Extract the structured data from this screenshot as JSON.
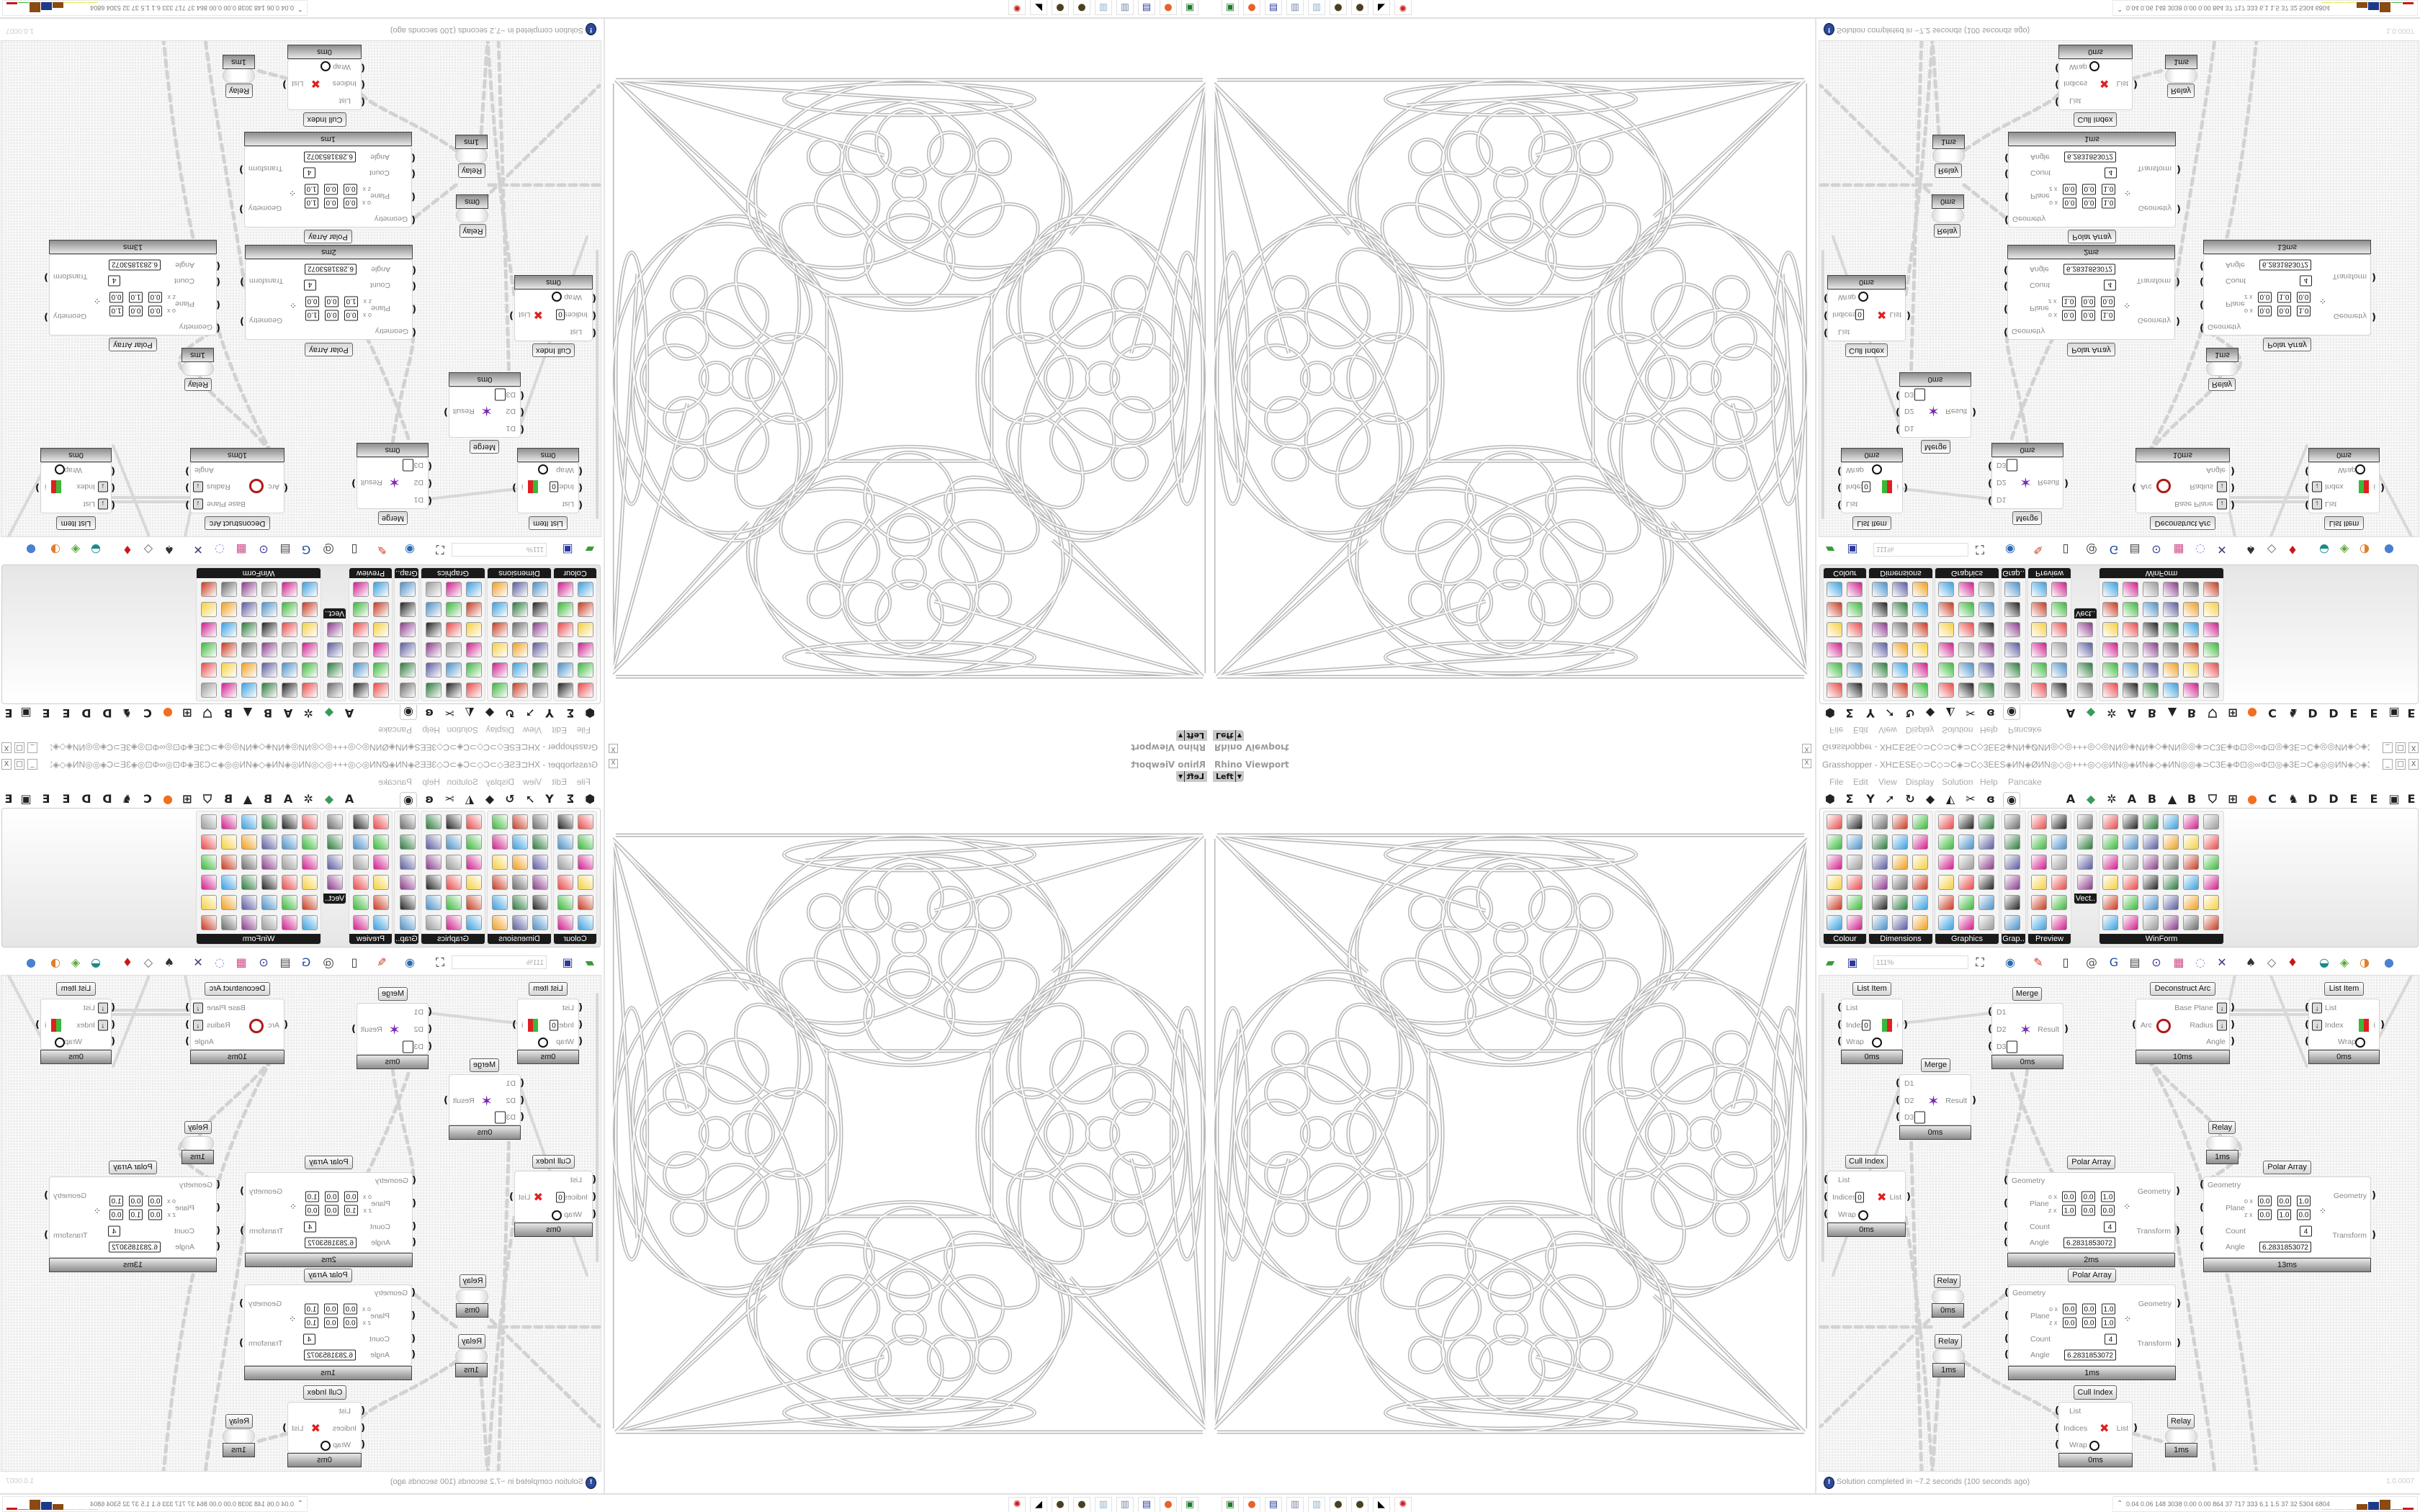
{
  "rhino_viewport": {
    "title": "Rhino Viewport",
    "view": "Left",
    "close": "X"
  },
  "grasshopper": {
    "title": "Grasshopper - XH⊏ESE◇⊃C◇⊃C◈⊃C◇3EES◈ИN◈ØИN◎◇◎+++◎◇◎ИN◎◈ИN◈◇◈ИN◎◎◈⊃C3E◈Φ⊡◎∞Φ⊡◎◈3E⊃C◈◎◎ИN◈◇◈3E◈3E⊞◈+ES◈⊞3E◈3E◈◇◈◈⊃C3E◈◈⊃C",
    "window_buttons": [
      "_",
      "□",
      "X"
    ],
    "menu": [
      "File",
      "Edit",
      "View",
      "Display",
      "Solution",
      "Help",
      "Pancake"
    ],
    "tabs": [
      {
        "icon": "params-icon",
        "glyph": "⬢"
      },
      {
        "icon": "maths-icon",
        "glyph": "Σ"
      },
      {
        "icon": "sets-icon",
        "glyph": "Y"
      },
      {
        "icon": "vector-icon",
        "glyph": "➚"
      },
      {
        "icon": "curve-icon",
        "glyph": "↻"
      },
      {
        "icon": "surface-icon",
        "glyph": "◆"
      },
      {
        "icon": "mesh-icon",
        "glyph": "◭"
      },
      {
        "icon": "intersect-icon",
        "glyph": "✂"
      },
      {
        "icon": "transform-icon",
        "glyph": "ɞ"
      },
      {
        "icon": "display-icon",
        "glyph": "◉",
        "selected": true
      },
      {
        "icon": "tab-a",
        "glyph": "A"
      },
      {
        "icon": "leaf-icon",
        "glyph": "◆"
      },
      {
        "icon": "gear-icon",
        "glyph": "✲"
      },
      {
        "icon": "tab-a",
        "glyph": "A"
      },
      {
        "icon": "tab-b",
        "glyph": "B"
      },
      {
        "icon": "mountain-icon",
        "glyph": "▲"
      },
      {
        "icon": "tab-b",
        "glyph": "B"
      },
      {
        "icon": "shield-icon",
        "glyph": "⛉"
      },
      {
        "icon": "grid-icon",
        "glyph": "⊞"
      },
      {
        "icon": "orange-ball-icon",
        "glyph": "●"
      },
      {
        "icon": "tab-c",
        "glyph": "C"
      },
      {
        "icon": "rooster-icon",
        "glyph": "♞"
      },
      {
        "icon": "tab-d",
        "glyph": "D"
      },
      {
        "icon": "tab-d",
        "glyph": "D"
      },
      {
        "icon": "tab-e",
        "glyph": "E"
      },
      {
        "icon": "tab-e",
        "glyph": "E"
      },
      {
        "icon": "frame-icon",
        "glyph": "▣"
      },
      {
        "icon": "tab-e",
        "glyph": "E"
      }
    ],
    "ribbon_groups": [
      "Colour",
      "Dimensions",
      "Graphics",
      "Grap..",
      "Preview",
      "Vect..",
      "WinForm"
    ],
    "zoom": "111%",
    "toolbar_icons": [
      "new-file-icon",
      "save-icon",
      "zoom-extents-icon",
      "preview-eye-icon",
      "sketch-icon",
      "bulb-icon",
      "email-icon",
      "gha-icon",
      "document-icon",
      "search-icon",
      "package-icon",
      "lightbulb-icon",
      "wires-icon",
      "rhino-icon",
      "mesh-icon",
      "red-gem-icon",
      "teal-icon",
      "green-icon",
      "sphere-icon",
      "blue-sphere-icon"
    ],
    "accent": "#1a1a1a",
    "nodes": [
      {
        "title": "List Item",
        "inputs": [
          "List",
          "Index",
          "Wrap"
        ],
        "outputs": [
          "i"
        ],
        "value": "0",
        "time": "0ms"
      },
      {
        "title": "Merge",
        "inputs": [
          "D1",
          "D2",
          "D3"
        ],
        "outputs": [
          "Result"
        ],
        "time": "0ms"
      },
      {
        "title": "Deconstruct Arc",
        "inputs": [
          "Arc"
        ],
        "outputs": [
          "Base Plane",
          "Radius",
          "Angle"
        ],
        "time": "10ms"
      },
      {
        "title": "List Item",
        "inputs": [
          "List",
          "Index",
          "Wrap"
        ],
        "outputs": [
          "i"
        ],
        "time": "0ms"
      },
      {
        "title": "Merge",
        "inputs": [
          "D1",
          "D2",
          "D3"
        ],
        "outputs": [
          "Result"
        ],
        "time": "0ms"
      },
      {
        "title": "Relay",
        "time": "1ms"
      },
      {
        "title": "Cull Index",
        "inputs": [
          "List",
          "Indices",
          "Wrap"
        ],
        "outputs": [
          "List"
        ],
        "value": "0",
        "time": "0ms"
      },
      {
        "title": "Polar Array",
        "inputs": [
          "Geometry",
          "Plane",
          "Count",
          "Angle"
        ],
        "outputs": [
          "Geometry",
          "Transform"
        ],
        "plane_o": [
          "0.0",
          "0.0",
          "1.0"
        ],
        "plane_z": [
          "1.0",
          "0.0",
          "0.0"
        ],
        "count": "4",
        "angle": "6.2831853072",
        "time": "2ms"
      },
      {
        "title": "Polar Array",
        "inputs": [
          "Geometry",
          "Plane",
          "Count",
          "Angle"
        ],
        "outputs": [
          "Geometry",
          "Transform"
        ],
        "plane_o": [
          "0.0",
          "0.0",
          "1.0"
        ],
        "plane_z": [
          "0.0",
          "1.0",
          "0.0"
        ],
        "count": "4",
        "angle": "6.2831853072",
        "time": "13ms"
      },
      {
        "title": "Polar Array",
        "inputs": [
          "Geometry",
          "Plane",
          "Count",
          "Angle"
        ],
        "outputs": [
          "Geometry",
          "Transform"
        ],
        "plane_o": [
          "0.0",
          "0.0",
          "1.0"
        ],
        "plane_z": [
          "0.0",
          "0.0",
          "1.0"
        ],
        "count": "4",
        "angle": "6.2831853072",
        "time": "1ms"
      },
      {
        "title": "Relay",
        "time": "0ms"
      },
      {
        "title": "Relay",
        "time": "1ms"
      },
      {
        "title": "Cull Index",
        "inputs": [
          "List",
          "Indices",
          "Wrap"
        ],
        "outputs": [
          "List"
        ],
        "time": "0ms"
      },
      {
        "title": "Relay",
        "time": "1ms"
      }
    ],
    "status": "Solution completed in ~7.2 seconds (100 seconds ago)",
    "version": "1.0.0007"
  },
  "taskbar": {
    "icons": [
      {
        "name": "terminal-icon",
        "glyph": "▣",
        "color": "#1c7a2a"
      },
      {
        "name": "firefox-icon",
        "glyph": "●",
        "color": "#e8622a"
      },
      {
        "name": "floppy-64-icon",
        "glyph": "▤",
        "color": "#283c9a"
      },
      {
        "name": "notepad-icon",
        "glyph": "▥",
        "color": "#7a8aa8"
      },
      {
        "name": "notepad-icon",
        "glyph": "▥",
        "color": "#8fb0c8"
      },
      {
        "name": "globe-icon",
        "glyph": "●",
        "color": "#4a4020"
      },
      {
        "name": "globe-icon",
        "glyph": "●",
        "color": "#4a4020"
      },
      {
        "name": "wolf-icon",
        "glyph": "◣",
        "color": "#000000"
      },
      {
        "name": "red-app-icon",
        "glyph": "✺",
        "color": "#d01818"
      }
    ],
    "stats": "0.04 0.06 148 3038 0.00 0.00 864 37 717 333 6.1 1.5 37 32 5304 6804",
    "stats_bars": [
      {
        "color": "#e6e64a",
        "level": 0.05
      },
      {
        "color": "#e6e64a",
        "level": 0.05
      },
      {
        "color": "#e6e64a",
        "level": 0.05
      },
      {
        "color": "#8a4a12",
        "level": 0.55
      },
      {
        "color": "#1c3a8a",
        "level": 0.75
      },
      {
        "color": "#8a4a12",
        "level": 1.0
      },
      {
        "color": "#3ab83a",
        "level": 0.05
      },
      {
        "color": "#c81818",
        "level": 0.2
      }
    ]
  }
}
